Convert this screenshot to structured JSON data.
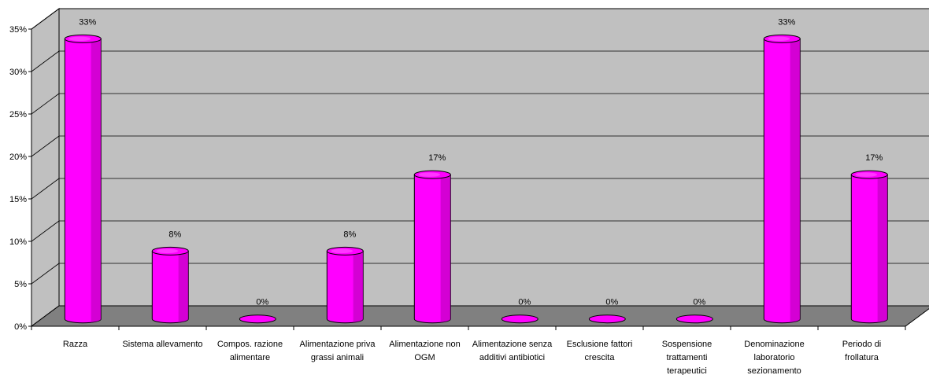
{
  "chart_data": {
    "type": "bar",
    "categories": [
      "Razza",
      "Sistema allevamento",
      "Compos. razione alimentare",
      "Alimentazione priva grassi animali",
      "Alimentazione non OGM",
      "Alimentazione senza additivi antibiotici",
      "Esclusione fattori crescita",
      "Sospensione trattamenti terapeutici",
      "Denominazione laboratorio sezionamento",
      "Periodo di frollatura"
    ],
    "category_lines": [
      [
        "Razza"
      ],
      [
        "Sistema allevamento"
      ],
      [
        "Compos. razione",
        "alimentare"
      ],
      [
        "Alimentazione priva",
        "grassi animali"
      ],
      [
        "Alimentazione non",
        "OGM"
      ],
      [
        "Alimentazione senza",
        "additivi antibiotici"
      ],
      [
        "Esclusione fattori",
        "crescita"
      ],
      [
        "Sospensione",
        "trattamenti",
        "terapeutici"
      ],
      [
        "Denominazione",
        "laboratorio",
        "sezionamento"
      ],
      [
        "Periodo di",
        "frollatura"
      ]
    ],
    "values": [
      33,
      8,
      0,
      8,
      17,
      0,
      0,
      0,
      33,
      17
    ],
    "data_labels": [
      "33%",
      "8%",
      "0%",
      "8%",
      "17%",
      "0%",
      "0%",
      "0%",
      "33%",
      "17%"
    ],
    "y_ticks": [
      "0%",
      "5%",
      "10%",
      "15%",
      "20%",
      "25%",
      "30%",
      "35%"
    ],
    "ylim": [
      0,
      35
    ],
    "grid": true,
    "colors": {
      "bar": "#ff00ff",
      "bar_shadow": "#b000b0",
      "bar_highlight": "#ff9cff",
      "back_wall": "#c0c0c0",
      "floor": "#808080",
      "grid": "#000000"
    }
  }
}
